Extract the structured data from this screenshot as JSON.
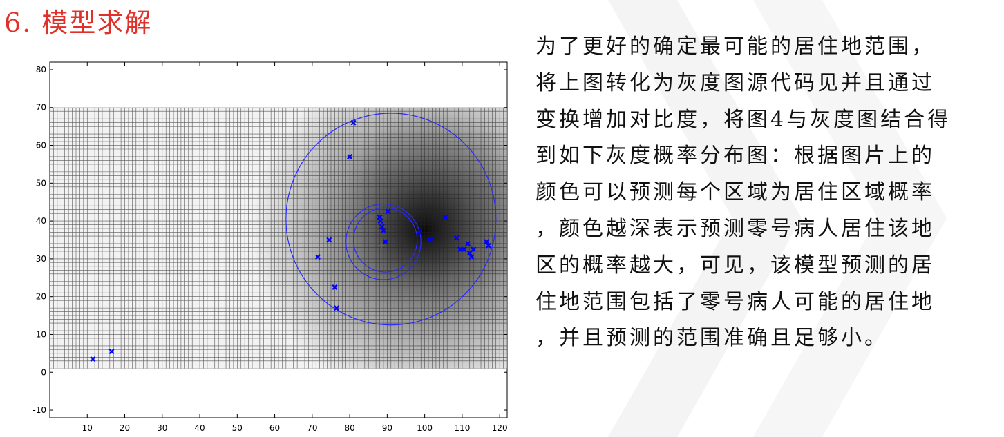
{
  "slide": {
    "title": "6. 模型求解",
    "paragraph_lines": [
      "为了更好的确定最可能的居住地范围，",
      "将上图转化为灰度图源代码见并且通过",
      "变换增加对比度，将图4与灰度图结合得",
      "到如下灰度概率分布图：根据图片上的",
      "颜色可以预测每个区域为居住区域概率",
      "，颜色越深表示预测零号病人居住该地",
      "区的概率越大，可见，该模型预测的居",
      "住地范围包括了零号病人可能的居住地",
      "，并且预测的范围准确且足够小。"
    ]
  },
  "chart_data": {
    "type": "scatter",
    "title": "",
    "xlabel": "",
    "ylabel": "",
    "xlim": [
      0,
      122
    ],
    "ylim": [
      -12,
      82
    ],
    "x_ticks": [
      10,
      20,
      30,
      40,
      50,
      60,
      70,
      80,
      90,
      100,
      110,
      120
    ],
    "y_ticks": [
      -10,
      0,
      10,
      20,
      30,
      40,
      50,
      60,
      70,
      80
    ],
    "grid_region": {
      "x": [
        0,
        122
      ],
      "y": [
        1,
        70
      ]
    },
    "grid": true,
    "background": "grayscale probability heatmap, darkest near (98, 37)",
    "series": [
      {
        "marker": "x",
        "color": "#0000ff",
        "x": [
          11.5,
          16.5,
          71.5,
          74.5,
          76,
          76.5,
          80,
          81,
          88,
          88.2,
          88.6,
          89,
          89.5,
          90.2,
          98.5,
          101.5,
          105.5,
          108.5,
          109.5,
          110.5,
          111.5,
          112,
          112.5,
          113,
          116.5,
          117
        ],
        "y": [
          3.5,
          5.5,
          30.5,
          35,
          22.5,
          17,
          57,
          66,
          41,
          40,
          38.5,
          37.5,
          34.5,
          42.5,
          37,
          35,
          41,
          35.5,
          32.5,
          32.5,
          34,
          31.5,
          30.5,
          32.5,
          34.5,
          33.5
        ]
      },
      {
        "marker": "+",
        "color": "#dd3333",
        "x": [
          88.5
        ],
        "y": [
          33.5
        ]
      }
    ],
    "circles": [
      {
        "cx": 91,
        "cy": 40.5,
        "r": 28,
        "color": "#2a2aff"
      },
      {
        "cx": 89,
        "cy": 34.5,
        "r": 10,
        "color": "#2a2aff"
      },
      {
        "cx": 89.5,
        "cy": 35,
        "r": 8.5,
        "color": "#2a2aff"
      }
    ]
  }
}
